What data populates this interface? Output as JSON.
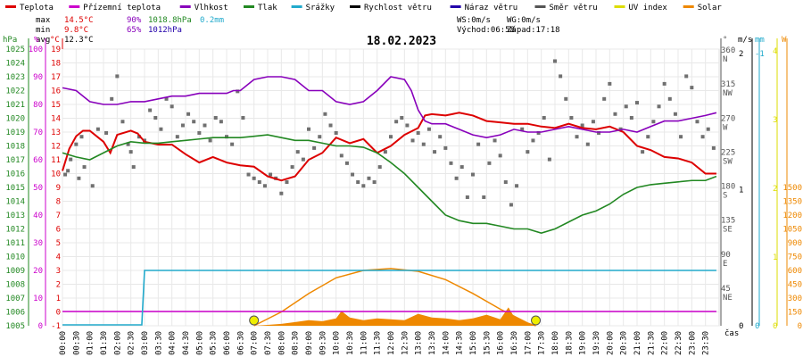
{
  "chart_data": {
    "type": "line",
    "title": "18.02.2023",
    "legend": [
      {
        "name": "Teplota",
        "color": "#dd0000"
      },
      {
        "name": "Přízemní teplota",
        "color": "#cc00cc"
      },
      {
        "name": "Vlhkost",
        "color": "#8800bb"
      },
      {
        "name": "Tlak",
        "color": "#228822"
      },
      {
        "name": "Srážky",
        "color": "#22aacc"
      },
      {
        "name": "Rychlost větru",
        "color": "#000000"
      },
      {
        "name": "Náraz větru",
        "color": "#2200aa"
      },
      {
        "name": "Směr větru",
        "color": "#555555"
      },
      {
        "name": "UV index",
        "color": "#dddd00"
      },
      {
        "name": "Solar",
        "color": "#ee8800"
      }
    ],
    "stats": {
      "max_label": "max",
      "min_label": "min",
      "avg_label": "avg",
      "max_temp": "14.5°C",
      "max_hum": "90%",
      "max_press": "1018.8hPa",
      "max_rain": "0.2mm",
      "min_temp": "9.8°C",
      "min_hum": "65%",
      "min_press": "1012hPa",
      "avg_temp": "12.3°C",
      "ws": "WS:0m/s",
      "wg": "WG:0m/s",
      "sunrise": "Východ:06:58",
      "sunset": "Západ:17:18"
    },
    "axes": {
      "hpa_unit": "hPa",
      "pct_unit": "%",
      "degc_unit": "°C",
      "dir_unit": "°",
      "ms_unit": "m/s",
      "mm_unit": "mm",
      "w_unit": "W",
      "x_unit": "čas",
      "hpa_ticks": [
        1005,
        1006,
        1007,
        1008,
        1009,
        1010,
        1011,
        1012,
        1013,
        1014,
        1015,
        1016,
        1017,
        1018,
        1019,
        1020,
        1021,
        1022,
        1023,
        1024,
        1025
      ],
      "pct_ticks": [
        0,
        10,
        20,
        30,
        40,
        50,
        60,
        70,
        80,
        90,
        100
      ],
      "degc_ticks": [
        -1,
        0,
        1,
        2,
        3,
        4,
        5,
        6,
        7,
        8,
        9,
        10,
        11,
        12,
        13,
        14,
        15,
        16,
        17,
        18,
        19
      ],
      "dir_ticks": [
        {
          "v": 360,
          "label": "N"
        },
        {
          "v": 315,
          "label": "NW"
        },
        {
          "v": 270,
          "label": "W"
        },
        {
          "v": 225,
          "label": "SW"
        },
        {
          "v": 180,
          "label": "S"
        },
        {
          "v": 135,
          "label": "SE"
        },
        {
          "v": 90,
          "label": "E"
        },
        {
          "v": 45,
          "label": "NE"
        }
      ],
      "ms_ticks": [
        {
          "v": 2,
          "label": "2"
        },
        {
          "v": 1,
          "label": "1"
        },
        {
          "v": 0,
          "label": "0"
        }
      ],
      "mm_ticks": [
        {
          "v": 1,
          "label": "-1"
        },
        {
          "v": 0,
          "label": "0"
        }
      ],
      "uv_ticks": [
        "4",
        "3",
        "2",
        "1",
        "0"
      ],
      "w_ticks": [
        0,
        150,
        300,
        450,
        600,
        750,
        900,
        1050,
        1200,
        1350,
        1500
      ],
      "time_labels": [
        "00:00",
        "00:30",
        "01:00",
        "01:30",
        "02:00",
        "02:30",
        "03:00",
        "03:30",
        "04:00",
        "04:30",
        "05:00",
        "05:30",
        "06:00",
        "06:30",
        "07:00",
        "07:30",
        "08:00",
        "08:30",
        "09:00",
        "09:30",
        "10:00",
        "10:30",
        "11:00",
        "11:30",
        "12:00",
        "12:30",
        "13:00",
        "13:30",
        "14:00",
        "14:30",
        "15:00",
        "15:30",
        "16:00",
        "16:30",
        "17:00",
        "17:30",
        "18:00",
        "18:30",
        "19:00",
        "19:30",
        "20:00",
        "20:30",
        "21:00",
        "21:30",
        "22:00",
        "22:30",
        "23:00",
        "23:30"
      ]
    },
    "series": [
      {
        "name": "Teplota",
        "color": "#dd0000",
        "axis": "degc",
        "x": [
          0,
          0.25,
          0.5,
          0.75,
          1,
          1.5,
          1.75,
          2,
          2.5,
          2.75,
          3,
          3.5,
          4,
          4.5,
          5,
          5.5,
          6,
          6.5,
          7,
          7.5,
          8,
          8.5,
          9,
          9.5,
          10,
          10.5,
          11,
          11.5,
          12,
          12.5,
          13,
          13.25,
          13.5,
          14,
          14.5,
          15,
          15.5,
          16,
          16.5,
          17,
          17.5,
          18,
          18.5,
          19,
          19.5,
          20,
          20.5,
          21,
          21.5,
          22,
          22.5,
          23,
          23.5,
          23.9
        ],
        "y": [
          10.2,
          11.8,
          12.7,
          13.1,
          13.1,
          12.3,
          11.5,
          12.8,
          13.1,
          12.9,
          12.3,
          12.1,
          12.1,
          11.4,
          10.8,
          11.2,
          10.8,
          10.6,
          10.5,
          9.8,
          9.5,
          9.8,
          11.0,
          11.5,
          12.6,
          12.2,
          12.5,
          11.5,
          12.0,
          12.8,
          13.3,
          14.2,
          14.3,
          14.2,
          14.4,
          14.2,
          13.8,
          13.7,
          13.6,
          13.6,
          13.4,
          13.3,
          13.6,
          13.3,
          13.2,
          13.4,
          13.0,
          12.0,
          11.7,
          11.2,
          11.1,
          10.8,
          10.0,
          10.0
        ]
      },
      {
        "name": "Vlhkost",
        "color": "#8800bb",
        "axis": "pct",
        "x": [
          0,
          0.5,
          1,
          1.5,
          2,
          2.5,
          3,
          3.5,
          4,
          4.5,
          5,
          5.5,
          6,
          6.25,
          6.5,
          7,
          7.5,
          8,
          8.5,
          9,
          9.5,
          10,
          10.5,
          11,
          11.5,
          12,
          12.5,
          12.75,
          13,
          13.25,
          13.5,
          14,
          14.5,
          15,
          15.5,
          16,
          16.5,
          17,
          17.5,
          18,
          18.5,
          19,
          19.5,
          20,
          20.5,
          21,
          21.5,
          22,
          22.5,
          23,
          23.5,
          23.9
        ],
        "y": [
          86,
          85,
          81,
          80,
          80,
          81,
          81,
          82,
          83,
          83,
          84,
          84,
          84,
          85,
          85,
          89,
          90,
          90,
          89,
          85,
          85,
          81,
          80,
          81,
          85,
          90,
          89,
          85,
          78,
          74,
          73,
          73,
          71,
          69,
          68,
          69,
          71,
          70,
          70,
          71,
          72,
          71,
          70,
          70,
          71,
          70,
          72,
          74,
          74,
          75,
          76,
          77
        ]
      },
      {
        "name": "Tlak",
        "color": "#228822",
        "axis": "hpa",
        "x": [
          0,
          0.5,
          1,
          1.5,
          2,
          2.5,
          3,
          3.5,
          4,
          4.5,
          5,
          5.5,
          6,
          6.5,
          7,
          7.5,
          8,
          8.5,
          9,
          9.5,
          10,
          10.5,
          11,
          11.5,
          12,
          12.5,
          13,
          13.5,
          14,
          14.5,
          15,
          15.5,
          16,
          16.5,
          17,
          17.5,
          18,
          18.5,
          19,
          19.5,
          20,
          20.5,
          21,
          21.5,
          22,
          22.5,
          23,
          23.5,
          23.9
        ],
        "y": [
          1017.5,
          1017.2,
          1017.0,
          1017.5,
          1018.0,
          1018.3,
          1018.2,
          1018.2,
          1018.3,
          1018.4,
          1018.5,
          1018.6,
          1018.6,
          1018.6,
          1018.7,
          1018.8,
          1018.6,
          1018.4,
          1018.4,
          1018.2,
          1018.0,
          1018.0,
          1017.9,
          1017.5,
          1016.8,
          1016.0,
          1015.0,
          1014.0,
          1013.0,
          1012.6,
          1012.4,
          1012.4,
          1012.2,
          1012.0,
          1012.0,
          1011.7,
          1012.0,
          1012.5,
          1013.0,
          1013.3,
          1013.8,
          1014.5,
          1015.0,
          1015.2,
          1015.3,
          1015.4,
          1015.5,
          1015.5,
          1015.8
        ]
      },
      {
        "name": "Přízemní teplota",
        "color": "#cc00cc",
        "axis": "degc",
        "x": [
          0,
          23.9
        ],
        "y": [
          0,
          0
        ]
      },
      {
        "name": "Srážky",
        "color": "#22aacc",
        "axis": "mm",
        "x": [
          0,
          2.9,
          3.0,
          23.9
        ],
        "y": [
          0,
          0,
          0.2,
          0.2
        ]
      }
    ],
    "wind_direction_deg": {
      "x": [
        0.1,
        0.2,
        0.3,
        0.5,
        0.6,
        0.7,
        0.8,
        1.1,
        1.3,
        1.6,
        1.8,
        2.0,
        2.2,
        2.4,
        2.5,
        2.6,
        2.8,
        3.0,
        3.2,
        3.4,
        3.6,
        3.8,
        4.0,
        4.2,
        4.4,
        4.6,
        4.8,
        5.0,
        5.2,
        5.4,
        5.6,
        5.8,
        6.0,
        6.2,
        6.4,
        6.6,
        6.8,
        7.0,
        7.2,
        7.4,
        7.6,
        7.8,
        8.0,
        8.2,
        8.4,
        8.6,
        8.8,
        9.0,
        9.2,
        9.4,
        9.6,
        9.8,
        10.0,
        10.2,
        10.4,
        10.6,
        10.8,
        11.0,
        11.2,
        11.4,
        11.6,
        11.8,
        12.0,
        12.2,
        12.4,
        12.6,
        12.8,
        13.0,
        13.2,
        13.4,
        13.6,
        13.8,
        14.0,
        14.2,
        14.4,
        14.6,
        14.8,
        15.0,
        15.2,
        15.4,
        15.6,
        15.8,
        16.0,
        16.2,
        16.4,
        16.6,
        16.8,
        17.0,
        17.2,
        17.4,
        17.6,
        17.8,
        18.0,
        18.2,
        18.4,
        18.6,
        18.8,
        19.0,
        19.2,
        19.4,
        19.6,
        19.8,
        20.0,
        20.2,
        20.4,
        20.6,
        20.8,
        21.0,
        21.2,
        21.4,
        21.6,
        21.8,
        22.0,
        22.2,
        22.4,
        22.6,
        22.8,
        23.0,
        23.2,
        23.4,
        23.6,
        23.8
      ],
      "y": [
        200,
        205,
        220,
        240,
        195,
        250,
        210,
        185,
        260,
        255,
        300,
        330,
        270,
        240,
        230,
        210,
        250,
        245,
        285,
        275,
        260,
        300,
        290,
        250,
        265,
        280,
        270,
        255,
        265,
        245,
        275,
        270,
        250,
        240,
        310,
        275,
        200,
        195,
        190,
        185,
        200,
        195,
        175,
        190,
        210,
        230,
        220,
        260,
        235,
        250,
        280,
        265,
        255,
        225,
        215,
        200,
        190,
        185,
        195,
        190,
        210,
        230,
        250,
        270,
        275,
        265,
        245,
        255,
        240,
        260,
        230,
        250,
        235,
        215,
        195,
        210,
        170,
        200,
        240,
        170,
        215,
        245,
        225,
        190,
        160,
        185,
        260,
        230,
        245,
        255,
        275,
        220,
        350,
        330,
        300,
        275,
        250,
        265,
        240,
        270,
        255,
        300,
        320,
        280,
        260,
        290,
        275,
        295,
        230,
        250,
        270,
        290,
        320,
        300,
        280,
        250,
        330,
        315,
        270,
        250,
        260,
        235
      ]
    },
    "solar_sun_curve": {
      "x": [
        7.0,
        8,
        9,
        10,
        11,
        12,
        13,
        14,
        15,
        16,
        17,
        17.3
      ],
      "y": [
        0,
        150,
        350,
        520,
        600,
        620,
        590,
        500,
        350,
        180,
        30,
        0
      ]
    },
    "solar_measured": {
      "x": [
        7.0,
        7.5,
        8,
        8.5,
        9,
        9.5,
        10,
        10.2,
        10.5,
        11,
        11.5,
        12,
        12.5,
        13,
        13.5,
        14,
        14.5,
        15,
        15.5,
        16,
        16.3,
        16.5,
        17,
        17.3
      ],
      "y": [
        0,
        10,
        20,
        40,
        60,
        50,
        80,
        160,
        90,
        60,
        80,
        70,
        60,
        130,
        90,
        80,
        60,
        80,
        120,
        70,
        200,
        100,
        30,
        0
      ]
    },
    "markers": [
      {
        "x": 7.0,
        "label": "Východ"
      },
      {
        "x": 17.3,
        "label": "Západ"
      }
    ]
  }
}
